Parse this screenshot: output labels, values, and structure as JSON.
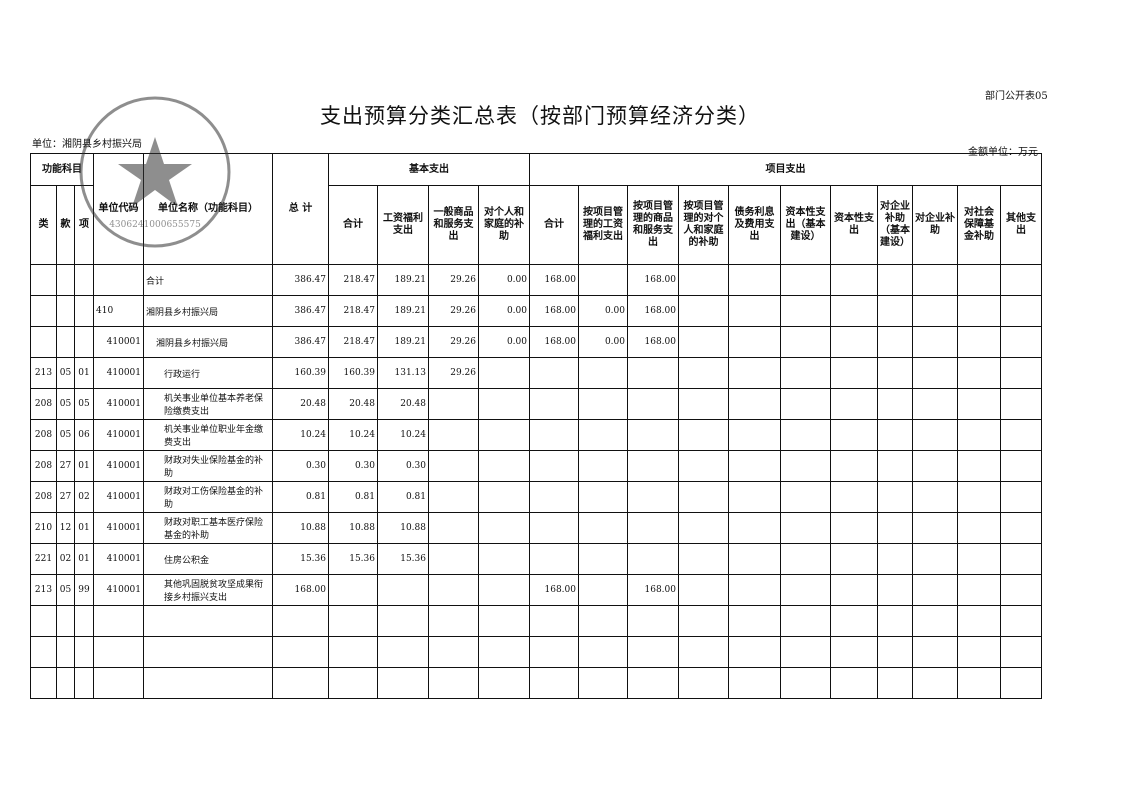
{
  "form_no": "部门公开表05",
  "title": "支出预算分类汇总表（按部门预算经济分类）",
  "unit_label": "单位：湘阴县乡村振兴局",
  "money_unit": "金额单位：万元",
  "stamp": {
    "text": "湘阴县乡村振兴局",
    "code": "4306241000655575"
  },
  "headers": {
    "func_subject": "功能科目",
    "lei": "类",
    "kuan": "款",
    "xiang": "项",
    "unit_code": "单位代码",
    "unit_name": "单位名称（功能科目）",
    "total": "总 计",
    "basic": "基本支出",
    "project": "项目支出",
    "basic_cols": [
      "合计",
      "工资福利支出",
      "一般商品和服务支出",
      "对个人和家庭的补助"
    ],
    "project_cols": [
      "合计",
      "按项目管理的工资福利支出",
      "按项目管理的商品和服务支出",
      "按项目管理的对个人和家庭的补助",
      "债务利息及费用支出",
      "资本性支出（基本建设）",
      "资本性支出",
      "对企业补助（基本建设）",
      "对企业补助",
      "对社会保障基金补助",
      "其他支出"
    ]
  },
  "rows": [
    {
      "lei": "",
      "kuan": "",
      "xiang": "",
      "code": "",
      "name": "合计",
      "total": "386.47",
      "b_total": "218.47",
      "b_wage": "189.21",
      "b_goods": "29.26",
      "b_personal": "0.00",
      "p_total": "168.00",
      "p_wage": "",
      "p_goods": "168.00"
    },
    {
      "lei": "",
      "kuan": "",
      "xiang": "",
      "code": "410",
      "name": "湘阴县乡村振兴局",
      "total": "386.47",
      "b_total": "218.47",
      "b_wage": "189.21",
      "b_goods": "29.26",
      "b_personal": "0.00",
      "p_total": "168.00",
      "p_wage": "0.00",
      "p_goods": "168.00"
    },
    {
      "lei": "",
      "kuan": "",
      "xiang": "",
      "code": "410001",
      "name": "湘阴县乡村振兴局",
      "total": "386.47",
      "b_total": "218.47",
      "b_wage": "189.21",
      "b_goods": "29.26",
      "b_personal": "0.00",
      "p_total": "168.00",
      "p_wage": "0.00",
      "p_goods": "168.00"
    },
    {
      "lei": "213",
      "kuan": "05",
      "xiang": "01",
      "code": "410001",
      "name": "行政运行",
      "total": "160.39",
      "b_total": "160.39",
      "b_wage": "131.13",
      "b_goods": "29.26",
      "b_personal": "",
      "p_total": "",
      "p_wage": "",
      "p_goods": ""
    },
    {
      "lei": "208",
      "kuan": "05",
      "xiang": "05",
      "code": "410001",
      "name": "机关事业单位基本养老保险缴费支出",
      "total": "20.48",
      "b_total": "20.48",
      "b_wage": "20.48",
      "b_goods": "",
      "b_personal": "",
      "p_total": "",
      "p_wage": "",
      "p_goods": ""
    },
    {
      "lei": "208",
      "kuan": "05",
      "xiang": "06",
      "code": "410001",
      "name": "机关事业单位职业年金缴费支出",
      "total": "10.24",
      "b_total": "10.24",
      "b_wage": "10.24",
      "b_goods": "",
      "b_personal": "",
      "p_total": "",
      "p_wage": "",
      "p_goods": ""
    },
    {
      "lei": "208",
      "kuan": "27",
      "xiang": "01",
      "code": "410001",
      "name": "财政对失业保险基金的补助",
      "total": "0.30",
      "b_total": "0.30",
      "b_wage": "0.30",
      "b_goods": "",
      "b_personal": "",
      "p_total": "",
      "p_wage": "",
      "p_goods": ""
    },
    {
      "lei": "208",
      "kuan": "27",
      "xiang": "02",
      "code": "410001",
      "name": "财政对工伤保险基金的补助",
      "total": "0.81",
      "b_total": "0.81",
      "b_wage": "0.81",
      "b_goods": "",
      "b_personal": "",
      "p_total": "",
      "p_wage": "",
      "p_goods": ""
    },
    {
      "lei": "210",
      "kuan": "12",
      "xiang": "01",
      "code": "410001",
      "name": "财政对职工基本医疗保险基金的补助",
      "total": "10.88",
      "b_total": "10.88",
      "b_wage": "10.88",
      "b_goods": "",
      "b_personal": "",
      "p_total": "",
      "p_wage": "",
      "p_goods": ""
    },
    {
      "lei": "221",
      "kuan": "02",
      "xiang": "01",
      "code": "410001",
      "name": "住房公积金",
      "total": "15.36",
      "b_total": "15.36",
      "b_wage": "15.36",
      "b_goods": "",
      "b_personal": "",
      "p_total": "",
      "p_wage": "",
      "p_goods": ""
    },
    {
      "lei": "213",
      "kuan": "05",
      "xiang": "99",
      "code": "410001",
      "name": "其他巩固脱贫攻坚成果衔接乡村振兴支出",
      "total": "168.00",
      "b_total": "",
      "b_wage": "",
      "b_goods": "",
      "b_personal": "",
      "p_total": "168.00",
      "p_wage": "",
      "p_goods": "168.00"
    }
  ]
}
